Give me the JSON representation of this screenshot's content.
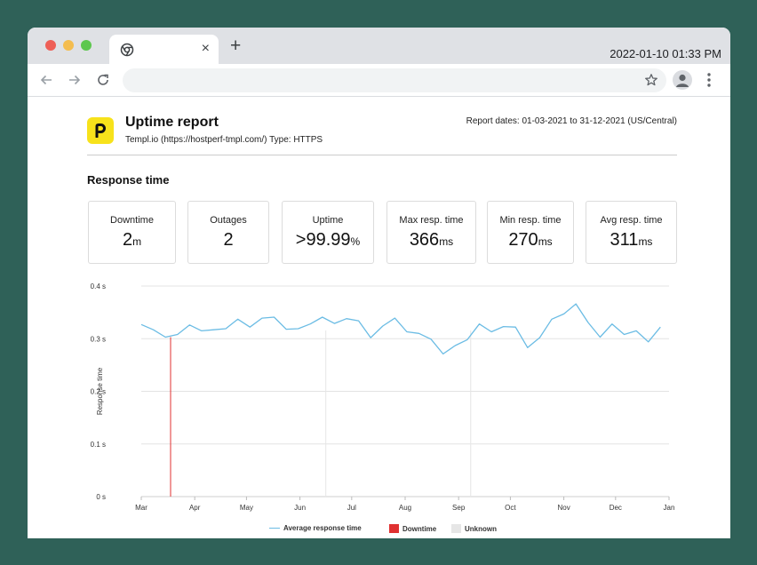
{
  "browser": {
    "clock": "2022-01-10 01:33 PM",
    "new_tab_symbol": "+",
    "close_symbol": "×",
    "icons": [
      "chrome-icon",
      "back-arrow-icon",
      "forward-arrow-icon",
      "reload-icon",
      "star-icon",
      "account-icon",
      "more-vert-icon"
    ]
  },
  "report": {
    "logo_letter": "P",
    "title": "Uptime report",
    "subtitle": "Templ.io (https://hostperf-tmpl.com/) Type: HTTPS",
    "dates": "Report dates: 01-03-2021 to 31-12-2021 (US/Central)",
    "section_title": "Response time",
    "brand_color": "#f7e21b"
  },
  "stats": [
    {
      "label": "Downtime",
      "value": "2",
      "unit": "m"
    },
    {
      "label": "Outages",
      "value": "2",
      "unit": ""
    },
    {
      "label": "Uptime",
      "value": ">99.99",
      "unit": "%"
    },
    {
      "label": "Max resp. time",
      "value": "366",
      "unit": "ms"
    },
    {
      "label": "Min resp. time",
      "value": "270",
      "unit": "ms"
    },
    {
      "label": "Avg resp. time",
      "value": "311",
      "unit": "ms"
    }
  ],
  "chart_data": {
    "type": "line",
    "xlabel": "",
    "ylabel": "Response time",
    "y_ticks": [
      "0 s",
      "0.1 s",
      "0.2 s",
      "0.3 s",
      "0.4 s"
    ],
    "ylim": [
      0,
      0.4
    ],
    "x_ticks": [
      "Mar",
      "Apr",
      "May",
      "Jun",
      "Jul",
      "Aug",
      "Sep",
      "Oct",
      "Nov",
      "Dec",
      "Jan"
    ],
    "xlim": [
      "2021-03-01",
      "2022-01-01"
    ],
    "grid": true,
    "legend_placement": "bottom",
    "colors": {
      "line": "#6bbce4",
      "downtime": "#e03131",
      "unknown": "#e6e6e6"
    },
    "series": [
      {
        "name": "Average response time",
        "x": [
          "2021-03-01",
          "2021-03-08",
          "2021-03-15",
          "2021-03-22",
          "2021-03-29",
          "2021-04-05",
          "2021-04-12",
          "2021-04-19",
          "2021-04-26",
          "2021-05-03",
          "2021-05-10",
          "2021-05-17",
          "2021-05-24",
          "2021-05-31",
          "2021-06-07",
          "2021-06-14",
          "2021-06-21",
          "2021-06-28",
          "2021-07-05",
          "2021-07-12",
          "2021-07-19",
          "2021-07-26",
          "2021-08-02",
          "2021-08-09",
          "2021-08-16",
          "2021-08-23",
          "2021-08-30",
          "2021-09-06",
          "2021-09-13",
          "2021-09-20",
          "2021-09-27",
          "2021-10-04",
          "2021-10-11",
          "2021-10-18",
          "2021-10-25",
          "2021-11-01",
          "2021-11-08",
          "2021-11-15",
          "2021-11-22",
          "2021-11-29",
          "2021-12-06",
          "2021-12-13",
          "2021-12-20",
          "2021-12-27"
        ],
        "y": [
          0.327,
          0.317,
          0.303,
          0.308,
          0.326,
          0.315,
          0.317,
          0.319,
          0.337,
          0.322,
          0.339,
          0.341,
          0.318,
          0.319,
          0.328,
          0.341,
          0.329,
          0.338,
          0.334,
          0.302,
          0.324,
          0.339,
          0.313,
          0.31,
          0.299,
          0.271,
          0.287,
          0.298,
          0.328,
          0.313,
          0.323,
          0.322,
          0.283,
          0.302,
          0.337,
          0.347,
          0.366,
          0.331,
          0.303,
          0.328,
          0.308,
          0.315,
          0.294,
          0.322
        ]
      }
    ],
    "downtime_dates": [
      "2021-03-18"
    ],
    "unknown_dates": [
      "2021-06-16",
      "2021-09-08"
    ],
    "legend": [
      "Average response time",
      "Downtime",
      "Unknown"
    ]
  }
}
